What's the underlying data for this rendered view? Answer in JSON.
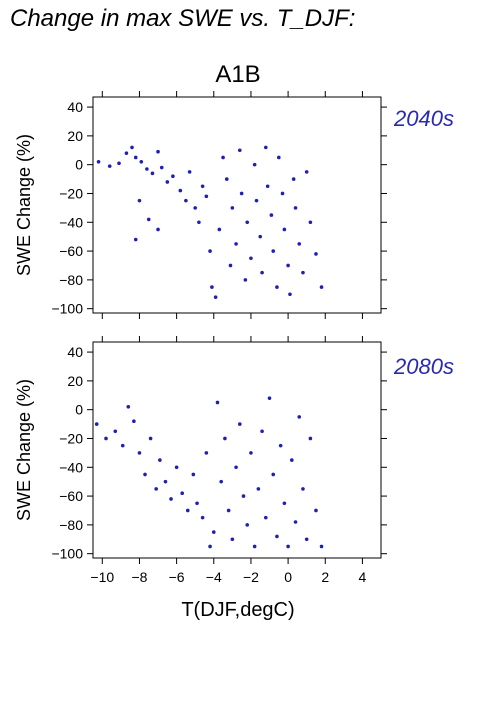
{
  "title": "Change in max SWE vs. T_DJF:",
  "scenario": "A1B",
  "colors": {
    "points": "#1f1fb4",
    "period_label": "#2a2ab0",
    "axis": "#000000"
  },
  "chart_data": [
    {
      "type": "scatter",
      "panel_label": "2040s",
      "xlabel": "T(DJF,degC)",
      "ylabel": "SWE Change (%)",
      "xlim": [
        -10.5,
        5
      ],
      "ylim": [
        -103,
        47
      ],
      "xticks": [
        -10,
        -8,
        -6,
        -4,
        -2,
        0,
        2,
        4
      ],
      "yticks": [
        -100,
        -80,
        -60,
        -40,
        -20,
        0,
        20,
        40
      ],
      "xtick_labels_shown": false,
      "grid": false,
      "series": [
        {
          "points": [
            [
              -10.2,
              2
            ],
            [
              -9.6,
              -1
            ],
            [
              -9.1,
              1
            ],
            [
              -8.7,
              8
            ],
            [
              -8.4,
              12
            ],
            [
              -8.2,
              5
            ],
            [
              -7.9,
              2
            ],
            [
              -7.6,
              -3
            ],
            [
              -7.3,
              -6
            ],
            [
              -7.0,
              9
            ],
            [
              -6.8,
              -2
            ],
            [
              -6.5,
              -12
            ],
            [
              -8.0,
              -25
            ],
            [
              -7.5,
              -38
            ],
            [
              -8.2,
              -52
            ],
            [
              -7.0,
              -45
            ],
            [
              -6.2,
              -8
            ],
            [
              -5.8,
              -18
            ],
            [
              -5.5,
              -25
            ],
            [
              -5.3,
              -5
            ],
            [
              -5.0,
              -30
            ],
            [
              -4.8,
              -40
            ],
            [
              -4.6,
              -15
            ],
            [
              -4.4,
              -22
            ],
            [
              -4.2,
              -60
            ],
            [
              -4.1,
              -85
            ],
            [
              -3.9,
              -92
            ],
            [
              -3.7,
              -45
            ],
            [
              -3.5,
              5
            ],
            [
              -3.3,
              -10
            ],
            [
              -3.1,
              -70
            ],
            [
              -3.0,
              -30
            ],
            [
              -2.8,
              -55
            ],
            [
              -2.6,
              10
            ],
            [
              -2.5,
              -20
            ],
            [
              -2.3,
              -80
            ],
            [
              -2.2,
              -40
            ],
            [
              -2.0,
              -65
            ],
            [
              -1.8,
              0
            ],
            [
              -1.7,
              -25
            ],
            [
              -1.5,
              -50
            ],
            [
              -1.4,
              -75
            ],
            [
              -1.2,
              12
            ],
            [
              -1.1,
              -15
            ],
            [
              -0.9,
              -35
            ],
            [
              -0.8,
              -60
            ],
            [
              -0.6,
              -85
            ],
            [
              -0.5,
              5
            ],
            [
              -0.3,
              -20
            ],
            [
              -0.2,
              -45
            ],
            [
              0.0,
              -70
            ],
            [
              0.1,
              -90
            ],
            [
              0.3,
              -10
            ],
            [
              0.4,
              -30
            ],
            [
              0.6,
              -55
            ],
            [
              0.8,
              -75
            ],
            [
              1.0,
              -5
            ],
            [
              1.2,
              -40
            ],
            [
              1.5,
              -62
            ],
            [
              1.8,
              -85
            ]
          ]
        }
      ]
    },
    {
      "type": "scatter",
      "panel_label": "2080s",
      "xlabel": "T(DJF,degC)",
      "ylabel": "SWE Change (%)",
      "xlim": [
        -10.5,
        5
      ],
      "ylim": [
        -103,
        47
      ],
      "xticks": [
        -10,
        -8,
        -6,
        -4,
        -2,
        0,
        2,
        4
      ],
      "xtick_labels": [
        "−10",
        "−8",
        "−6",
        "−4",
        "−2",
        "0",
        "2",
        "4"
      ],
      "yticks": [
        -100,
        -80,
        -60,
        -40,
        -20,
        0,
        20,
        40
      ],
      "grid": false,
      "series": [
        {
          "points": [
            [
              -10.3,
              -10
            ],
            [
              -9.8,
              -20
            ],
            [
              -9.3,
              -15
            ],
            [
              -8.9,
              -25
            ],
            [
              -8.6,
              2
            ],
            [
              -8.3,
              -8
            ],
            [
              -8.0,
              -30
            ],
            [
              -7.7,
              -45
            ],
            [
              -7.4,
              -20
            ],
            [
              -7.1,
              -55
            ],
            [
              -6.9,
              -35
            ],
            [
              -6.6,
              -50
            ],
            [
              -6.3,
              -62
            ],
            [
              -6.0,
              -40
            ],
            [
              -5.7,
              -58
            ],
            [
              -5.4,
              -70
            ],
            [
              -5.1,
              -45
            ],
            [
              -4.9,
              -65
            ],
            [
              -4.6,
              -75
            ],
            [
              -4.4,
              -30
            ],
            [
              -4.2,
              -95
            ],
            [
              -4.0,
              -85
            ],
            [
              -3.8,
              5
            ],
            [
              -3.6,
              -50
            ],
            [
              -3.4,
              -20
            ],
            [
              -3.2,
              -70
            ],
            [
              -3.0,
              -90
            ],
            [
              -2.8,
              -40
            ],
            [
              -2.6,
              -10
            ],
            [
              -2.4,
              -60
            ],
            [
              -2.2,
              -80
            ],
            [
              -2.0,
              -30
            ],
            [
              -1.8,
              -95
            ],
            [
              -1.6,
              -55
            ],
            [
              -1.4,
              -15
            ],
            [
              -1.2,
              -75
            ],
            [
              -1.0,
              8
            ],
            [
              -0.8,
              -45
            ],
            [
              -0.6,
              -88
            ],
            [
              -0.4,
              -25
            ],
            [
              -0.2,
              -65
            ],
            [
              0.0,
              -95
            ],
            [
              0.2,
              -35
            ],
            [
              0.4,
              -78
            ],
            [
              0.6,
              -5
            ],
            [
              0.8,
              -55
            ],
            [
              1.0,
              -90
            ],
            [
              1.2,
              -20
            ],
            [
              1.5,
              -70
            ],
            [
              1.8,
              -95
            ]
          ]
        }
      ]
    }
  ]
}
